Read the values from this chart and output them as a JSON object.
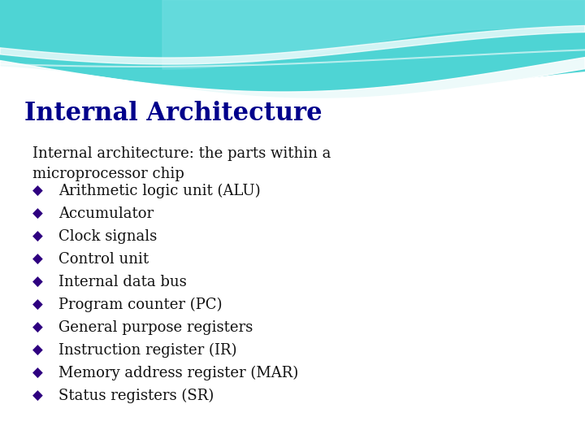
{
  "title": "Internal Architecture",
  "title_color": "#00008B",
  "title_fontsize": 22,
  "subtitle": "Internal architecture: the parts within a\nmicroprocessor chip",
  "subtitle_color": "#111111",
  "subtitle_fontsize": 13,
  "bullet_items": [
    "Arithmetic logic unit (ALU)",
    "Accumulator",
    "Clock signals",
    "Control unit",
    "Internal data bus",
    "Program counter (PC)",
    "General purpose registers",
    "Instruction register (IR)",
    "Memory address register (MAR)",
    "Status registers (SR)"
  ],
  "bullet_color": "#2E0080",
  "bullet_fontsize": 13,
  "bullet_marker": "◆",
  "bg_color": "#ffffff",
  "wave_top_color": "#4ECFCF",
  "wave_right_color": "#7DD8E0"
}
